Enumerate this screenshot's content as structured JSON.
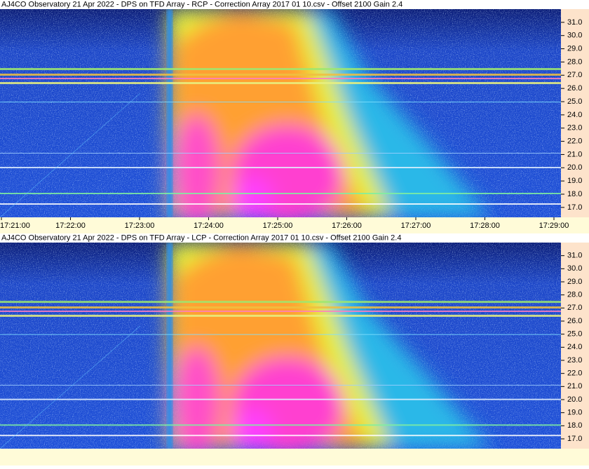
{
  "chart_data": [
    {
      "type": "spectrogram",
      "title": "AJ4CO Observatory 21 Apr 2022  -  DPS on TFD Array  -  RCP  -  Correction Array 2017 01 10.csv  -  Offset 2100  Gain 2.4",
      "ylim": [
        16.25,
        32.0
      ],
      "yticks": [
        {
          "value": 17,
          "label": "17.0"
        },
        {
          "value": 18,
          "label": "18.0"
        },
        {
          "value": 19,
          "label": "19.0"
        },
        {
          "value": 20,
          "label": "20.0"
        },
        {
          "value": 21,
          "label": "21.0"
        },
        {
          "value": 22,
          "label": "22.0"
        },
        {
          "value": 23,
          "label": "23.0"
        },
        {
          "value": 24,
          "label": "24.0"
        },
        {
          "value": 25,
          "label": "25.0"
        },
        {
          "value": 26,
          "label": "26.0"
        },
        {
          "value": 27,
          "label": "27.0"
        },
        {
          "value": 28,
          "label": "28.0"
        },
        {
          "value": 29,
          "label": "29.0"
        },
        {
          "value": 30,
          "label": "30.0"
        },
        {
          "value": 31,
          "label": "31.0"
        }
      ],
      "xticks": [
        "17:21:00",
        "17:22:00",
        "17:23:00",
        "17:24:00",
        "17:25:00",
        "17:26:00",
        "17:27:00",
        "17:28:00",
        "17:29:00"
      ]
    },
    {
      "type": "spectrogram",
      "title": "AJ4CO Observatory 21 Apr 2022  -  DPS on TFD Array  -  LCP  -  Correction Array 2017 01 10.csv  -  Offset 2100  Gain 2.4",
      "ylim": [
        16.25,
        32.0
      ],
      "yticks": [
        {
          "value": 17,
          "label": "17.0"
        },
        {
          "value": 18,
          "label": "18.0"
        },
        {
          "value": 19,
          "label": "19.0"
        },
        {
          "value": 20,
          "label": "20.0"
        },
        {
          "value": 21,
          "label": "21.0"
        },
        {
          "value": 22,
          "label": "22.0"
        },
        {
          "value": 23,
          "label": "23.0"
        },
        {
          "value": 24,
          "label": "24.0"
        },
        {
          "value": 25,
          "label": "25.0"
        },
        {
          "value": 26,
          "label": "26.0"
        },
        {
          "value": 27,
          "label": "27.0"
        },
        {
          "value": 28,
          "label": "28.0"
        },
        {
          "value": 29,
          "label": "29.0"
        },
        {
          "value": 30,
          "label": "30.0"
        },
        {
          "value": 31,
          "label": "31.0"
        }
      ]
    }
  ]
}
